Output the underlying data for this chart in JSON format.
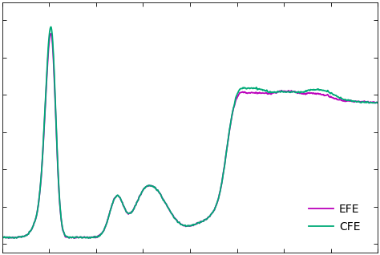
{
  "efe_color": "#bb00bb",
  "cfe_color": "#00aa77",
  "background_color": "#ffffff",
  "legend_labels": [
    "EFE",
    "CFE"
  ],
  "line_width": 1.3,
  "figsize": [
    4.74,
    3.18
  ],
  "dpi": 100
}
